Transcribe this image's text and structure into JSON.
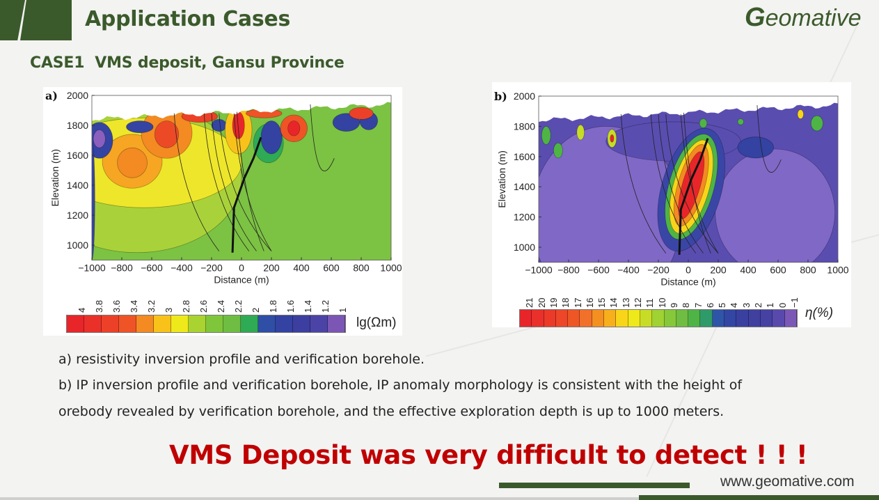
{
  "header": {
    "title": "Application Cases",
    "subtitle": "CASE1  VMS deposit, Gansu Province",
    "logo_text": "Geomative"
  },
  "chart_data": [
    {
      "type": "heatmap",
      "panel": "a)",
      "title": "resistivity inversion profile",
      "xlabel": "Distance (m)",
      "ylabel": "Elevation (m)",
      "xlim": [
        -1000,
        1000
      ],
      "ylim": [
        900,
        2000
      ],
      "xticks": [
        "−1000",
        "−800",
        "−600",
        "−400",
        "−200",
        "0",
        "200",
        "400",
        "600",
        "800",
        "1000"
      ],
      "yticks": [
        "2000",
        "1800",
        "1600",
        "1400",
        "1200",
        "1000"
      ],
      "colorbar": {
        "unit": "lg(Ωm)",
        "labels": [
          "4",
          "3.8",
          "3.6",
          "3.4",
          "3.2",
          "3",
          "2.8",
          "2.6",
          "2.4",
          "2.2",
          "2",
          "1.8",
          "1.6",
          "1.4",
          "1.2",
          "1"
        ],
        "colors": [
          "#e8262a",
          "#e9312a",
          "#ec4128",
          "#ef5426",
          "#f38a22",
          "#f9c21a",
          "#eee91a",
          "#a8d331",
          "#7fc63a",
          "#6fbd42",
          "#2faa55",
          "#2f4fa6",
          "#3442a2",
          "#3c3f9f",
          "#4b44a6",
          "#7b56b4"
        ]
      },
      "contour_labels": [
        "3",
        "3",
        "3",
        "3",
        "2",
        "3"
      ]
    },
    {
      "type": "heatmap",
      "panel": "b)",
      "title": "IP inversion profile",
      "xlabel": "Distance (m)",
      "ylabel": "Elevation (m)",
      "xlim": [
        -1000,
        1000
      ],
      "ylim": [
        900,
        2000
      ],
      "xticks": [
        "−1000",
        "−800",
        "−600",
        "−400",
        "−200",
        "0",
        "200",
        "400",
        "600",
        "800",
        "1000"
      ],
      "yticks": [
        "2000",
        "1800",
        "1600",
        "1400",
        "1200",
        "1000"
      ],
      "colorbar": {
        "unit": "η(%)",
        "labels": [
          "21",
          "20",
          "19",
          "18",
          "17",
          "16",
          "15",
          "14",
          "13",
          "12",
          "11",
          "10",
          "9",
          "8",
          "7",
          "6",
          "5",
          "4",
          "3",
          "2",
          "1",
          "0",
          "−1"
        ],
        "colors": [
          "#e8262a",
          "#e9302a",
          "#eb3a29",
          "#ed4628",
          "#ef5626",
          "#f1702a",
          "#f48f22",
          "#f7b01c",
          "#f9d51a",
          "#eee91a",
          "#c7dc26",
          "#9fd232",
          "#86c83a",
          "#6fbd42",
          "#4fb446",
          "#2f9a6a",
          "#2f55a8",
          "#3446a3",
          "#3a409f",
          "#40409f",
          "#4642a4",
          "#5a49ac",
          "#7c58b6"
        ]
      }
    }
  ],
  "captions": {
    "a": "a) resistivity inversion profile and verification borehole.",
    "b1": "b) IP inversion profile and verification borehole, IP anomaly morphology is consistent with the height of",
    "b2": "orebody revealed by verification borehole, and the effective exploration depth is up to 1000 meters."
  },
  "alert": "VMS Deposit was very difficult to detect ! ! !",
  "footer": {
    "website": "www.geomative.com"
  }
}
